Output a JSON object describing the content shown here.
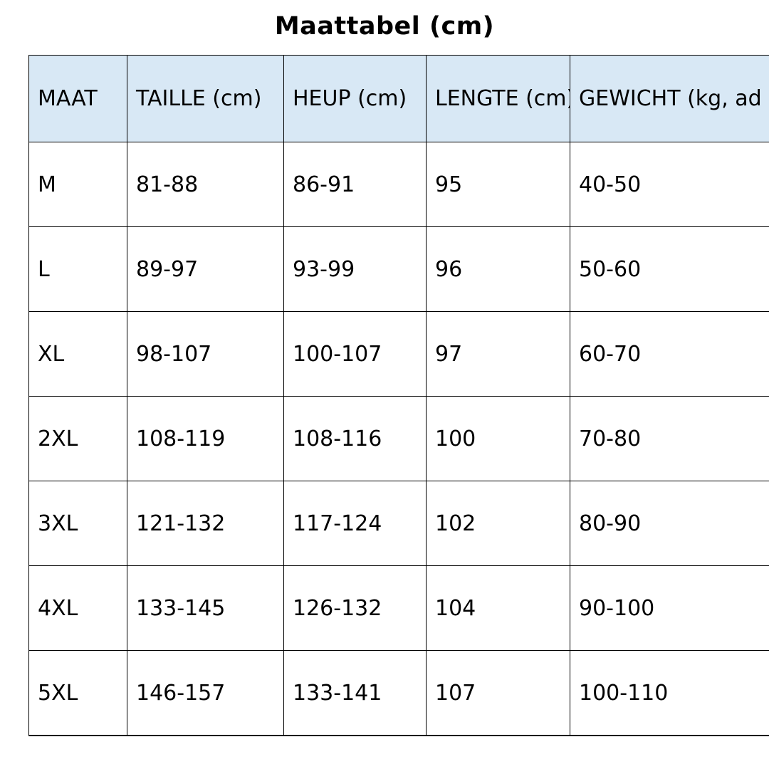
{
  "page": {
    "title": "Maattabel (cm)"
  },
  "table": {
    "columns": [
      "MAAT",
      "TAILLE (cm)",
      "HEUP (cm)",
      "LENGTE (cm)",
      "GEWICHT (kg, ad"
    ],
    "rows": [
      [
        "M",
        "81-88",
        "86-91",
        "95",
        "40-50"
      ],
      [
        "L",
        "89-97",
        "93-99",
        "96",
        "50-60"
      ],
      [
        "XL",
        "98-107",
        "100-107",
        "97",
        "60-70"
      ],
      [
        "2XL",
        "108-119",
        "108-116",
        "100",
        "70-80"
      ],
      [
        "3XL",
        "121-132",
        "117-124",
        "102",
        "80-90"
      ],
      [
        "4XL",
        "133-145",
        "126-132",
        "104",
        "90-100"
      ],
      [
        "5XL",
        "146-157",
        "133-141",
        "107",
        "100-110"
      ]
    ],
    "header_bg": "#d8e8f5",
    "border_color": "#000000",
    "text_color": "#000000"
  }
}
